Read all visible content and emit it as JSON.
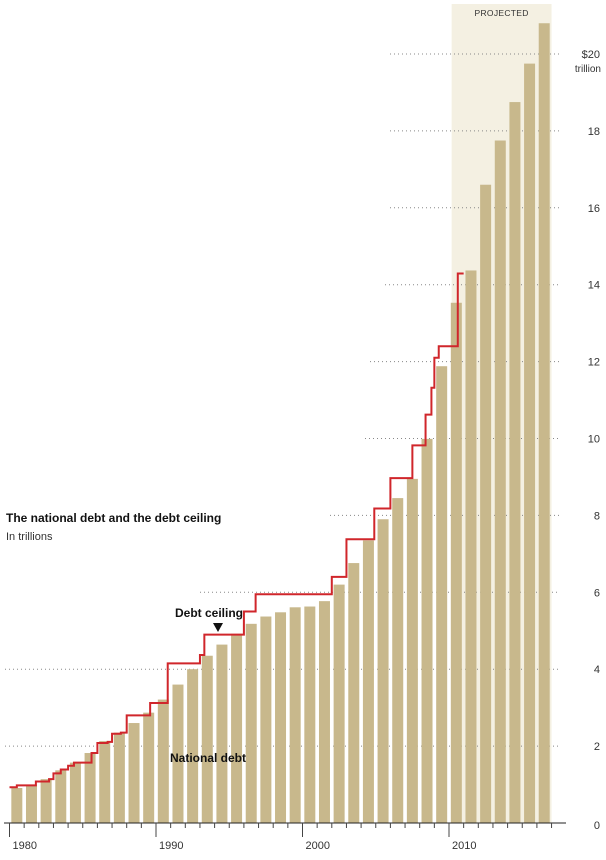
{
  "chart_data": {
    "type": "bar",
    "title": "The national debt and the debt ceiling",
    "subtitle": "In trillions",
    "y_unit_prefix": "$",
    "y_unit_label": "trillion",
    "ylim": [
      0,
      21
    ],
    "yticks": [
      0,
      2,
      4,
      6,
      8,
      10,
      12,
      14,
      16,
      18,
      20
    ],
    "ytick_top_label": "$20",
    "xlim": [
      1980,
      2017
    ],
    "xticks": [
      1980,
      1990,
      2000,
      2010
    ],
    "projected_label": "PROJECTED",
    "projected_from": 2011,
    "debt_ceiling_label": "Debt ceiling",
    "national_debt_label": "National debt",
    "colors": {
      "bar": "#c8b88c",
      "ceiling": "#d0262b",
      "projected_bg": "#f4f0e2",
      "grid": "#888888"
    },
    "series": [
      {
        "name": "National debt",
        "x": [
          1980,
          1981,
          1982,
          1983,
          1984,
          1985,
          1986,
          1987,
          1988,
          1989,
          1990,
          1991,
          1992,
          1993,
          1994,
          1995,
          1996,
          1997,
          1998,
          1999,
          2000,
          2001,
          2002,
          2003,
          2004,
          2005,
          2006,
          2007,
          2008,
          2009,
          2010,
          2011,
          2012,
          2013,
          2014,
          2015,
          2016
        ],
        "values": [
          0.91,
          1.0,
          1.14,
          1.37,
          1.57,
          1.82,
          2.13,
          2.35,
          2.6,
          2.87,
          3.21,
          3.6,
          4.0,
          4.35,
          4.64,
          4.92,
          5.18,
          5.37,
          5.48,
          5.61,
          5.63,
          5.77,
          6.2,
          6.76,
          7.35,
          7.9,
          8.45,
          8.95,
          9.99,
          11.88,
          13.53,
          14.37,
          16.6,
          17.75,
          18.75,
          19.75,
          20.8
        ]
      },
      {
        "name": "Debt ceiling",
        "type": "step",
        "x": [
          1980,
          1980.5,
          1981,
          1981.8,
          1982,
          1982.7,
          1983,
          1983.5,
          1984,
          1984.4,
          1984.8,
          1985.6,
          1986,
          1986.7,
          1987,
          1987.6,
          1988,
          1989,
          1989.6,
          1990,
          1990.8,
          1991,
          1991.5,
          1992,
          1992.5,
          1993,
          1993.3,
          1994,
          1995,
          1996,
          1996.8,
          1997,
          1998,
          1999,
          2000,
          2001,
          2002,
          2002.5,
          2003,
          2004,
          2004.9,
          2005,
          2006,
          2007,
          2007.5,
          2008,
          2008.4,
          2008.8,
          2009,
          2009.3,
          2010,
          2010.6,
          2011
        ],
        "values": [
          0.93,
          0.98,
          0.98,
          1.08,
          1.08,
          1.14,
          1.29,
          1.39,
          1.49,
          1.57,
          1.57,
          1.82,
          2.08,
          2.11,
          2.32,
          2.35,
          2.8,
          2.8,
          3.12,
          3.12,
          4.15,
          4.15,
          4.15,
          4.15,
          4.15,
          4.37,
          4.9,
          4.9,
          4.9,
          5.5,
          5.95,
          5.95,
          5.95,
          5.95,
          5.95,
          5.95,
          6.4,
          6.4,
          7.38,
          7.38,
          8.18,
          8.18,
          8.97,
          8.97,
          9.82,
          9.82,
          10.62,
          11.32,
          12.1,
          12.4,
          12.4,
          14.29,
          14.29
        ]
      }
    ]
  }
}
